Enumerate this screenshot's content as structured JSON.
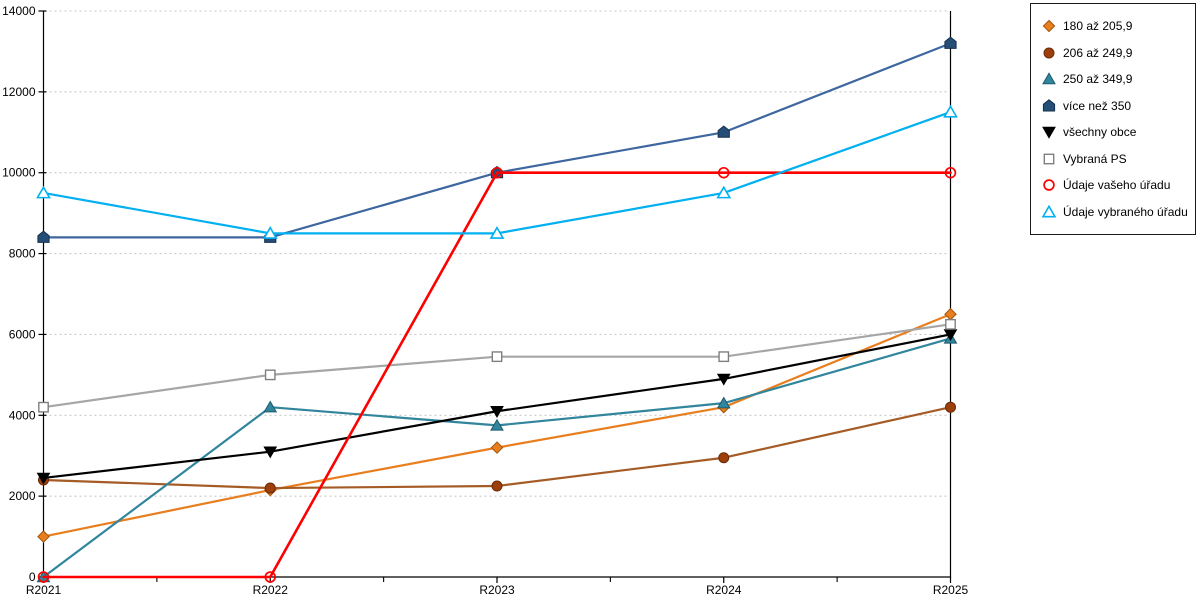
{
  "chart_data": {
    "type": "line",
    "title": "",
    "xlabel": "",
    "ylabel": "",
    "categories": [
      "R2021",
      "R2022",
      "R2023",
      "R2024",
      "R2025"
    ],
    "series": [
      {
        "name": "180 až 205,9",
        "marker": "diamond",
        "color": "#E87E1E",
        "marker_fill": "#E87E1E",
        "marker_stroke": "#A0540A",
        "values": [
          1000,
          2150,
          3200,
          4200,
          6500
        ]
      },
      {
        "name": "206 až 249,9",
        "marker": "circle",
        "color": "#A55B25",
        "marker_fill": "#9C3F0C",
        "marker_stroke": "#6B2B06",
        "values": [
          2400,
          2200,
          2250,
          2950,
          4200
        ]
      },
      {
        "name": "250 až 349,9",
        "marker": "triangle-up",
        "color": "#31859C",
        "marker_fill": "#31859C",
        "marker_stroke": "#1D5A6C",
        "values": [
          0,
          4200,
          3750,
          4300,
          5900
        ]
      },
      {
        "name": "více než 350",
        "marker": "pentagon",
        "color": "#3E67A0",
        "marker_fill": "#254E77",
        "marker_stroke": "#16304C",
        "values": [
          8400,
          8400,
          10000,
          11000,
          13200
        ]
      },
      {
        "name": "všechny obce",
        "marker": "triangle-down",
        "color": "#000000",
        "marker_fill": "#000000",
        "marker_stroke": "#000000",
        "values": [
          2450,
          3100,
          4100,
          4900,
          6000
        ]
      },
      {
        "name": "Vybraná PS",
        "marker": "square-open",
        "color": "#A6A6A6",
        "marker_fill": "#FFFFFF",
        "marker_stroke": "#7F7F7F",
        "values": [
          4200,
          5000,
          5450,
          5450,
          6250
        ]
      },
      {
        "name": "Údaje vašeho úřadu",
        "marker": "circle-open",
        "color": "#FE0000",
        "marker_fill": "none",
        "marker_stroke": "#FE0000",
        "values": [
          0,
          0,
          10000,
          10000,
          10000
        ]
      },
      {
        "name": "Údaje vybraného úřadu",
        "marker": "triangle-open",
        "color": "#00B0F0",
        "marker_fill": "#FFFFFF",
        "marker_stroke": "#00B0F0",
        "values": [
          9500,
          8500,
          8500,
          9500,
          11500
        ]
      }
    ],
    "ylim": [
      0,
      14000
    ],
    "ytick_step": 2000,
    "ytick_labels": [
      "0",
      "2000",
      "4000",
      "6000",
      "8000",
      "10000",
      "12000",
      "14000"
    ],
    "grid": "horizontal-dotted",
    "gridline_color": "#C8C8C8",
    "axis_color": "#000000",
    "legend_position": "top-right",
    "legend_border_color": "#1B1B1B"
  }
}
